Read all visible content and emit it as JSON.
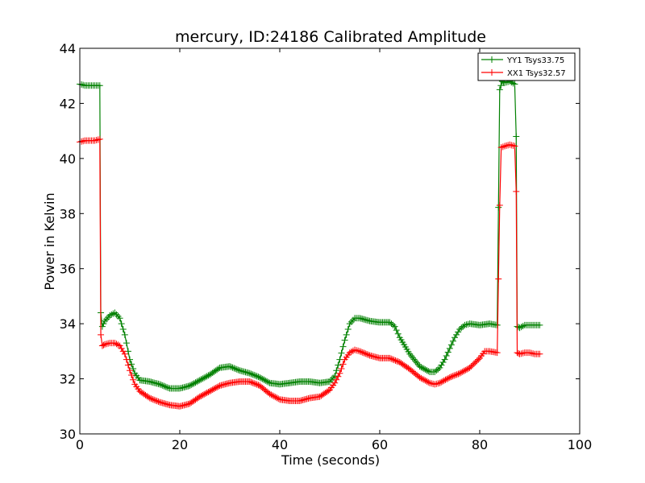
{
  "chart_data": {
    "type": "line",
    "title": "mercury, ID:24186 Calibrated Amplitude",
    "xlabel": "Time (seconds)",
    "ylabel": "Power in Kelvin",
    "xlim": [
      0,
      100
    ],
    "ylim": [
      30,
      44
    ],
    "xticks": [
      0,
      20,
      40,
      60,
      80,
      100
    ],
    "yticks": [
      30,
      32,
      34,
      36,
      38,
      40,
      42,
      44
    ],
    "grid": false,
    "legend_position": "top-right",
    "marker": "plus",
    "series": [
      {
        "name": "YY1 Tsys33.75",
        "color": "#008000",
        "points": [
          [
            0,
            42.7
          ],
          [
            1,
            42.65
          ],
          [
            2,
            42.65
          ],
          [
            3,
            42.65
          ],
          [
            4,
            42.65
          ],
          [
            4.2,
            34.4
          ],
          [
            4.5,
            33.9
          ],
          [
            5,
            34.1
          ],
          [
            6,
            34.3
          ],
          [
            7,
            34.4
          ],
          [
            8,
            34.2
          ],
          [
            9,
            33.6
          ],
          [
            10,
            32.7
          ],
          [
            11,
            32.2
          ],
          [
            12,
            31.95
          ],
          [
            14,
            31.9
          ],
          [
            16,
            31.8
          ],
          [
            18,
            31.65
          ],
          [
            20,
            31.65
          ],
          [
            22,
            31.75
          ],
          [
            24,
            31.95
          ],
          [
            26,
            32.15
          ],
          [
            28,
            32.4
          ],
          [
            30,
            32.45
          ],
          [
            32,
            32.3
          ],
          [
            34,
            32.2
          ],
          [
            36,
            32.05
          ],
          [
            38,
            31.85
          ],
          [
            40,
            31.8
          ],
          [
            42,
            31.85
          ],
          [
            44,
            31.9
          ],
          [
            46,
            31.9
          ],
          [
            48,
            31.85
          ],
          [
            50,
            31.9
          ],
          [
            51,
            32.1
          ],
          [
            52,
            32.7
          ],
          [
            53,
            33.4
          ],
          [
            54,
            34.0
          ],
          [
            55,
            34.2
          ],
          [
            56,
            34.2
          ],
          [
            58,
            34.1
          ],
          [
            60,
            34.05
          ],
          [
            62,
            34.05
          ],
          [
            63,
            33.9
          ],
          [
            64,
            33.5
          ],
          [
            66,
            32.9
          ],
          [
            68,
            32.45
          ],
          [
            70,
            32.25
          ],
          [
            71,
            32.25
          ],
          [
            72,
            32.4
          ],
          [
            73,
            32.7
          ],
          [
            74,
            33.1
          ],
          [
            75,
            33.5
          ],
          [
            76,
            33.8
          ],
          [
            77,
            33.95
          ],
          [
            78,
            34.0
          ],
          [
            80,
            33.95
          ],
          [
            82,
            34.0
          ],
          [
            83.5,
            33.95
          ],
          [
            84,
            42.5
          ],
          [
            84.5,
            42.8
          ],
          [
            85,
            42.75
          ],
          [
            86,
            42.8
          ],
          [
            87,
            42.7
          ],
          [
            87.3,
            40.8
          ],
          [
            87.5,
            33.9
          ],
          [
            88,
            33.85
          ],
          [
            89,
            33.95
          ],
          [
            90,
            33.95
          ],
          [
            91,
            33.95
          ],
          [
            92,
            33.95
          ]
        ]
      },
      {
        "name": "XX1 Tsys32.57",
        "color": "#ff0000",
        "points": [
          [
            0,
            40.6
          ],
          [
            1,
            40.65
          ],
          [
            2,
            40.65
          ],
          [
            3,
            40.65
          ],
          [
            4,
            40.7
          ],
          [
            4.2,
            33.6
          ],
          [
            4.5,
            33.2
          ],
          [
            5,
            33.25
          ],
          [
            6,
            33.3
          ],
          [
            7,
            33.3
          ],
          [
            8,
            33.2
          ],
          [
            9,
            32.9
          ],
          [
            10,
            32.3
          ],
          [
            11,
            31.8
          ],
          [
            12,
            31.55
          ],
          [
            14,
            31.3
          ],
          [
            16,
            31.15
          ],
          [
            18,
            31.05
          ],
          [
            20,
            31.0
          ],
          [
            22,
            31.1
          ],
          [
            24,
            31.35
          ],
          [
            26,
            31.55
          ],
          [
            28,
            31.75
          ],
          [
            30,
            31.85
          ],
          [
            32,
            31.9
          ],
          [
            34,
            31.9
          ],
          [
            36,
            31.75
          ],
          [
            38,
            31.45
          ],
          [
            40,
            31.25
          ],
          [
            42,
            31.2
          ],
          [
            44,
            31.2
          ],
          [
            46,
            31.3
          ],
          [
            48,
            31.35
          ],
          [
            50,
            31.6
          ],
          [
            51,
            31.85
          ],
          [
            52,
            32.2
          ],
          [
            53,
            32.7
          ],
          [
            54,
            32.95
          ],
          [
            55,
            33.05
          ],
          [
            56,
            33.0
          ],
          [
            58,
            32.85
          ],
          [
            60,
            32.75
          ],
          [
            62,
            32.75
          ],
          [
            64,
            32.6
          ],
          [
            66,
            32.35
          ],
          [
            68,
            32.05
          ],
          [
            70,
            31.85
          ],
          [
            71,
            31.8
          ],
          [
            72,
            31.85
          ],
          [
            74,
            32.05
          ],
          [
            76,
            32.2
          ],
          [
            78,
            32.4
          ],
          [
            80,
            32.75
          ],
          [
            81,
            33.0
          ],
          [
            82,
            33.0
          ],
          [
            83.5,
            32.95
          ],
          [
            84,
            38.3
          ],
          [
            84.3,
            40.4
          ],
          [
            85,
            40.45
          ],
          [
            86,
            40.5
          ],
          [
            87,
            40.45
          ],
          [
            87.3,
            38.8
          ],
          [
            87.5,
            32.95
          ],
          [
            88,
            32.9
          ],
          [
            89,
            32.95
          ],
          [
            90,
            32.95
          ],
          [
            91,
            32.9
          ],
          [
            92,
            32.9
          ]
        ]
      }
    ]
  }
}
